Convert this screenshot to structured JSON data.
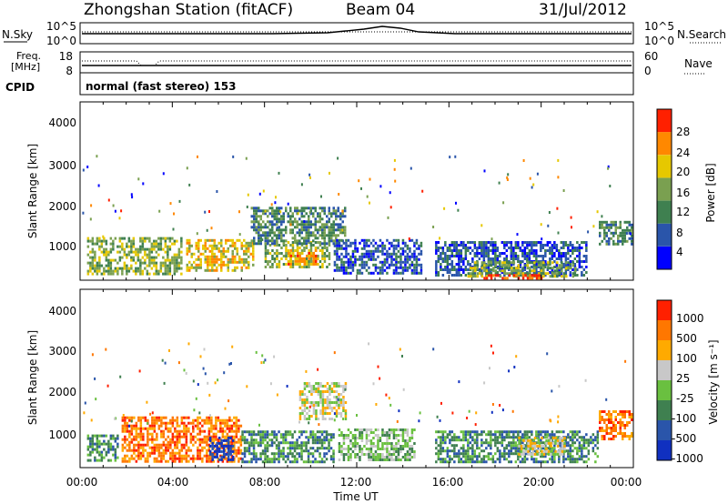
{
  "header": {
    "title": "Zhongshan Station (fitACF)",
    "beam": "Beam 04",
    "date": "31/Jul/2012"
  },
  "top_panels": {
    "nsky_label": "N.Sky",
    "nsky_ticks": [
      "10^5",
      "10^0"
    ],
    "nsearch_label": "N.Search",
    "nsearch_ticks": [
      "10^5",
      "10^0"
    ],
    "freq_label_1": "Freq.",
    "freq_label_2": "[MHz]",
    "freq_ticks": [
      "18",
      "8"
    ],
    "nave_label": "Nave",
    "nave_ticks": [
      "60",
      "0"
    ],
    "cpid_label": "CPID",
    "cpid_value": "normal (fast stereo) 153"
  },
  "chart_data": [
    {
      "type": "heatmap",
      "name": "power-panel",
      "ylabel": "Slant Range [km]",
      "xlabel": "Time UT",
      "yticks": [
        "4000",
        "3000",
        "2000",
        "1000"
      ],
      "ylim": [
        180,
        4600
      ],
      "xticks": [
        "00:00",
        "04:00",
        "08:00",
        "12:00",
        "16:00",
        "20:00",
        "00:00"
      ],
      "xlim": [
        0,
        24
      ],
      "colorbar_label": "Power [dB]",
      "colorbar_ticks": [
        "28",
        "24",
        "20",
        "16",
        "12",
        "8",
        "4"
      ],
      "colors": [
        "#0000ff",
        "#2a55aa",
        "#3f8050",
        "#7aa050",
        "#e6c800",
        "#ff8800",
        "#ff2000"
      ],
      "regions": [
        {
          "t0": 0.3,
          "t1": 4.4,
          "r0": 320,
          "r1": 1250,
          "level": 3
        },
        {
          "t0": 4.6,
          "t1": 7.5,
          "r0": 400,
          "r1": 1200,
          "level": 4
        },
        {
          "t0": 8.0,
          "t1": 10.8,
          "r0": 500,
          "r1": 1150,
          "level": 3
        },
        {
          "t0": 7.4,
          "t1": 11.5,
          "r0": 1100,
          "r1": 2000,
          "level": 2
        },
        {
          "t0": 9.0,
          "t1": 10.2,
          "r0": 600,
          "r1": 950,
          "level": 5
        },
        {
          "t0": 11.0,
          "t1": 14.8,
          "r0": 350,
          "r1": 1200,
          "level": 1
        },
        {
          "t0": 15.4,
          "t1": 22.0,
          "r0": 300,
          "r1": 1150,
          "level": 1
        },
        {
          "t0": 16.8,
          "t1": 21.5,
          "r0": 300,
          "r1": 650,
          "level": 3
        },
        {
          "t0": 17.5,
          "t1": 20.0,
          "r0": 200,
          "r1": 330,
          "level": 6
        },
        {
          "t0": 22.5,
          "t1": 23.9,
          "r0": 1100,
          "r1": 1650,
          "level": 2
        }
      ]
    },
    {
      "type": "heatmap",
      "name": "velocity-panel",
      "ylabel": "Slant Range [km]",
      "xlabel": "Time UT",
      "yticks": [
        "4000",
        "3000",
        "2000",
        "1000"
      ],
      "ylim": [
        180,
        4600
      ],
      "xticks": [
        "00:00",
        "04:00",
        "08:00",
        "12:00",
        "16:00",
        "20:00",
        "00:00"
      ],
      "xlim": [
        0,
        24
      ],
      "colorbar_label": "Velocity [m s⁻¹]",
      "colorbar_ticks": [
        "1000",
        "500",
        "100",
        "25",
        "-25",
        "-100",
        "-500",
        "-1000"
      ],
      "colors": [
        "#1030c0",
        "#2a55aa",
        "#3f8050",
        "#6ac040",
        "#c8c8c8",
        "#ffaa00",
        "#ff7700",
        "#ff2000"
      ],
      "regions": [
        {
          "t0": 0.3,
          "t1": 1.6,
          "r0": 350,
          "r1": 1000,
          "level": 2
        },
        {
          "t0": 1.8,
          "t1": 7.0,
          "r0": 350,
          "r1": 1450,
          "level": 6
        },
        {
          "t0": 5.6,
          "t1": 6.6,
          "r0": 400,
          "r1": 950,
          "level": 0
        },
        {
          "t0": 7.0,
          "t1": 11.0,
          "r0": 350,
          "r1": 1100,
          "level": 2
        },
        {
          "t0": 9.5,
          "t1": 11.5,
          "r0": 1400,
          "r1": 2300,
          "level": 4
        },
        {
          "t0": 11.2,
          "t1": 14.5,
          "r0": 350,
          "r1": 1150,
          "level": 3
        },
        {
          "t0": 15.4,
          "t1": 22.5,
          "r0": 300,
          "r1": 1100,
          "level": 2
        },
        {
          "t0": 19.0,
          "t1": 21.0,
          "r0": 500,
          "r1": 950,
          "level": 4
        },
        {
          "t0": 22.5,
          "t1": 23.9,
          "r0": 900,
          "r1": 1600,
          "level": 6
        }
      ]
    }
  ]
}
